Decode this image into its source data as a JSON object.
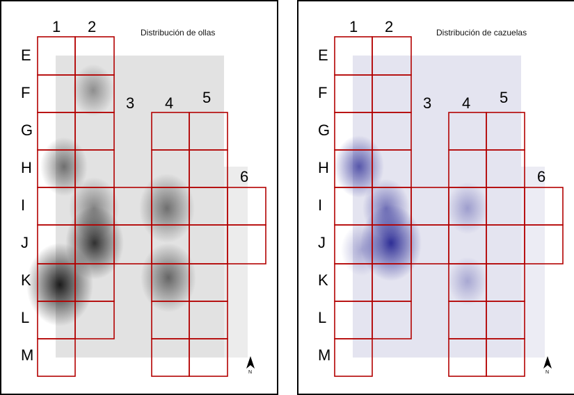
{
  "rows": [
    "E",
    "F",
    "G",
    "H",
    "I",
    "J",
    "K",
    "L",
    "M"
  ],
  "cols": [
    "1",
    "2",
    "3",
    "4",
    "5",
    "6"
  ],
  "north_label": "N",
  "colors": {
    "grid": "#b30000",
    "ollas_peak": "#111111",
    "cazuelas_peak": "#1a1a8c"
  },
  "maps": [
    {
      "id": "ollas",
      "title": "Distribución de ollas",
      "palette": "gray"
    },
    {
      "id": "cazuelas",
      "title": "Distribución de cazuelas",
      "palette": "blue"
    }
  ]
}
